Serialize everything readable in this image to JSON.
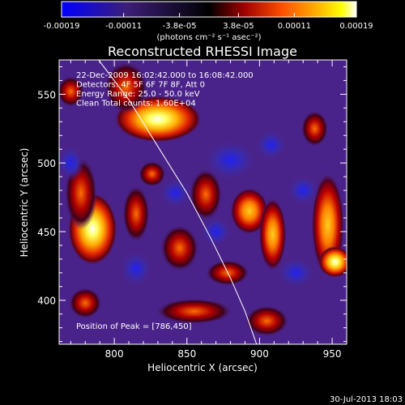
{
  "chart_data": {
    "type": "heatmap",
    "title": "Reconstructed RHESSI Image",
    "xlabel": "Heliocentric X (arcsec)",
    "ylabel": "Heliocentric Y (arcsec)",
    "xlim": [
      762,
      960
    ],
    "ylim": [
      368,
      575
    ],
    "x_ticks": [
      800,
      850,
      900,
      950
    ],
    "y_ticks": [
      400,
      450,
      500,
      550
    ],
    "colorbar": {
      "ticks": [
        "-0.00019",
        "-0.00011",
        "-3.8e-05",
        "3.8e-05",
        "0.00011",
        "0.00019"
      ],
      "tick_values": [
        -0.00019,
        -0.00011,
        -3.8e-05,
        3.8e-05,
        0.00011,
        0.00019
      ],
      "range": [
        -0.00019,
        0.00019
      ],
      "unit_label": "(photons cm⁻² s⁻¹ asec⁻²)",
      "colormap": [
        "#0000ff",
        "#3c1e78",
        "#000000",
        "#a00000",
        "#ff5000",
        "#ffaa00",
        "#ffff00",
        "#ffffff"
      ]
    },
    "annotations": [
      "22-Dec-2009 16:02:42.000 to 16:08:42.000",
      "Detectors: 4F 5F 6F 7F 8F, Att 0",
      "Energy Range: 25.0 - 50.0 keV",
      "Clean    Total counts: 1.60E+04",
      "Position of Peak = [786,450]"
    ],
    "peak": {
      "x": 786,
      "y": 450
    },
    "blobs": [
      {
        "x": 785,
        "y": 452,
        "sx": 9,
        "sy": 14,
        "v": 0.95
      },
      {
        "x": 777,
        "y": 478,
        "sx": 6,
        "sy": 14,
        "v": 0.55
      },
      {
        "x": 830,
        "y": 532,
        "sx": 16,
        "sy": 9,
        "v": 0.85
      },
      {
        "x": 808,
        "y": 555,
        "sx": 8,
        "sy": 10,
        "v": 0.55
      },
      {
        "x": 815,
        "y": 463,
        "sx": 5,
        "sy": 11,
        "v": 0.6
      },
      {
        "x": 845,
        "y": 438,
        "sx": 7,
        "sy": 9,
        "v": 0.5
      },
      {
        "x": 863,
        "y": 477,
        "sx": 6,
        "sy": 10,
        "v": 0.5
      },
      {
        "x": 893,
        "y": 465,
        "sx": 7,
        "sy": 9,
        "v": 0.7
      },
      {
        "x": 909,
        "y": 448,
        "sx": 5,
        "sy": 14,
        "v": 0.7
      },
      {
        "x": 878,
        "y": 420,
        "sx": 8,
        "sy": 5,
        "v": 0.5
      },
      {
        "x": 947,
        "y": 455,
        "sx": 6,
        "sy": 20,
        "v": 0.75
      },
      {
        "x": 952,
        "y": 428,
        "sx": 6,
        "sy": 6,
        "v": 0.85
      },
      {
        "x": 938,
        "y": 525,
        "sx": 5,
        "sy": 7,
        "v": 0.45
      },
      {
        "x": 855,
        "y": 392,
        "sx": 14,
        "sy": 5,
        "v": 0.45
      },
      {
        "x": 905,
        "y": 385,
        "sx": 8,
        "sy": 6,
        "v": 0.45
      },
      {
        "x": 770,
        "y": 552,
        "sx": 5,
        "sy": 6,
        "v": 0.5
      },
      {
        "x": 780,
        "y": 398,
        "sx": 6,
        "sy": 6,
        "v": 0.45
      },
      {
        "x": 826,
        "y": 492,
        "sx": 5,
        "sy": 5,
        "v": 0.45
      },
      {
        "x": 842,
        "y": 478,
        "sx": 6,
        "sy": 6,
        "v": -0.75
      },
      {
        "x": 815,
        "y": 423,
        "sx": 6,
        "sy": 7,
        "v": -0.5
      },
      {
        "x": 880,
        "y": 502,
        "sx": 10,
        "sy": 8,
        "v": -0.4
      },
      {
        "x": 908,
        "y": 513,
        "sx": 6,
        "sy": 6,
        "v": -0.55
      },
      {
        "x": 870,
        "y": 450,
        "sx": 6,
        "sy": 6,
        "v": -0.4
      },
      {
        "x": 930,
        "y": 480,
        "sx": 6,
        "sy": 6,
        "v": -0.45
      },
      {
        "x": 770,
        "y": 500,
        "sx": 5,
        "sy": 7,
        "v": -0.4
      },
      {
        "x": 925,
        "y": 420,
        "sx": 7,
        "sy": 6,
        "v": -0.35
      }
    ],
    "limb_curve": [
      [
        787,
        578
      ],
      [
        810,
        546
      ],
      [
        830,
        512
      ],
      [
        850,
        478
      ],
      [
        866,
        446
      ],
      [
        880,
        416
      ],
      [
        890,
        392
      ],
      [
        898,
        368
      ]
    ]
  },
  "footer": {
    "timestamp": "30-Jul-2013 18:03"
  }
}
